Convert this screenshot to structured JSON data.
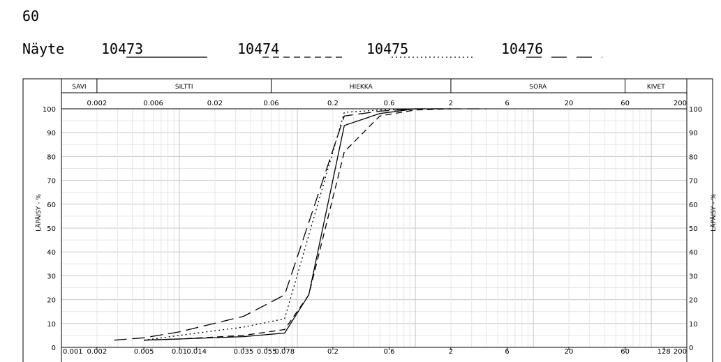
{
  "page_number": "60",
  "sample_heading": "Näyte",
  "samples": [
    {
      "id": "10473",
      "underline_style": "solid"
    },
    {
      "id": "10474",
      "underline_style": "short-dash"
    },
    {
      "id": "10475",
      "underline_style": "dotted"
    },
    {
      "id": "10476",
      "underline_style": "long-dash"
    }
  ],
  "fraction_bands": [
    {
      "label": "SAVI",
      "from": 0.001,
      "to": 0.002
    },
    {
      "label": "SILTTI",
      "from": 0.002,
      "to": 0.06
    },
    {
      "label": "HIEKKA",
      "from": 0.06,
      "to": 2
    },
    {
      "label": "SORA",
      "from": 2,
      "to": 60
    },
    {
      "label": "KIVET",
      "from": 60,
      "to": 200
    }
  ],
  "chart_data": {
    "type": "line",
    "x_scale": "log",
    "xlim": [
      0.001,
      200
    ],
    "ylim": [
      0,
      100
    ],
    "ylabel": "LÄPÄISY - %",
    "y_ticks": [
      "0",
      "10",
      "20",
      "30",
      "40",
      "50",
      "60",
      "70",
      "80",
      "90",
      "100"
    ],
    "top_axis_ticks": [
      "0.002",
      "0.006",
      "0.02",
      "0.06",
      "0.2",
      "0.6",
      "2",
      "6",
      "20",
      "60",
      "200"
    ],
    "bottom_axis_ticks": [
      "0.001",
      "0.002",
      "0.005",
      "0.01",
      "0.014",
      "0.035",
      "0.055",
      "0.078",
      "0.2",
      "0.6",
      "2",
      "6",
      "20",
      "60",
      "128",
      "200"
    ],
    "grid": true,
    "series": [
      {
        "name": "10473",
        "dash": "solid",
        "x": [
          0.005,
          0.01,
          0.035,
          0.078,
          0.125,
          0.25,
          0.5,
          1,
          2
        ],
        "y": [
          3,
          3.5,
          4.5,
          6,
          22,
          93,
          98,
          100,
          100
        ]
      },
      {
        "name": "10474",
        "dash": "short-dash",
        "x": [
          0.005,
          0.01,
          0.035,
          0.078,
          0.125,
          0.25,
          0.5,
          1,
          2
        ],
        "y": [
          3,
          3.5,
          5,
          7.5,
          22,
          82,
          97,
          99.5,
          100
        ]
      },
      {
        "name": "10475",
        "dash": "dotted",
        "x": [
          0.005,
          0.01,
          0.035,
          0.078,
          0.25,
          0.5,
          1
        ],
        "y": [
          3,
          5,
          8.5,
          12,
          98.5,
          99.5,
          100
        ]
      },
      {
        "name": "10476",
        "dash": "long-dash",
        "x": [
          0.0028,
          0.005,
          0.01,
          0.035,
          0.078,
          0.25,
          0.5,
          1,
          2,
          4
        ],
        "y": [
          3,
          4,
          6.5,
          13,
          22,
          97,
          99,
          100,
          100,
          100
        ]
      }
    ]
  }
}
